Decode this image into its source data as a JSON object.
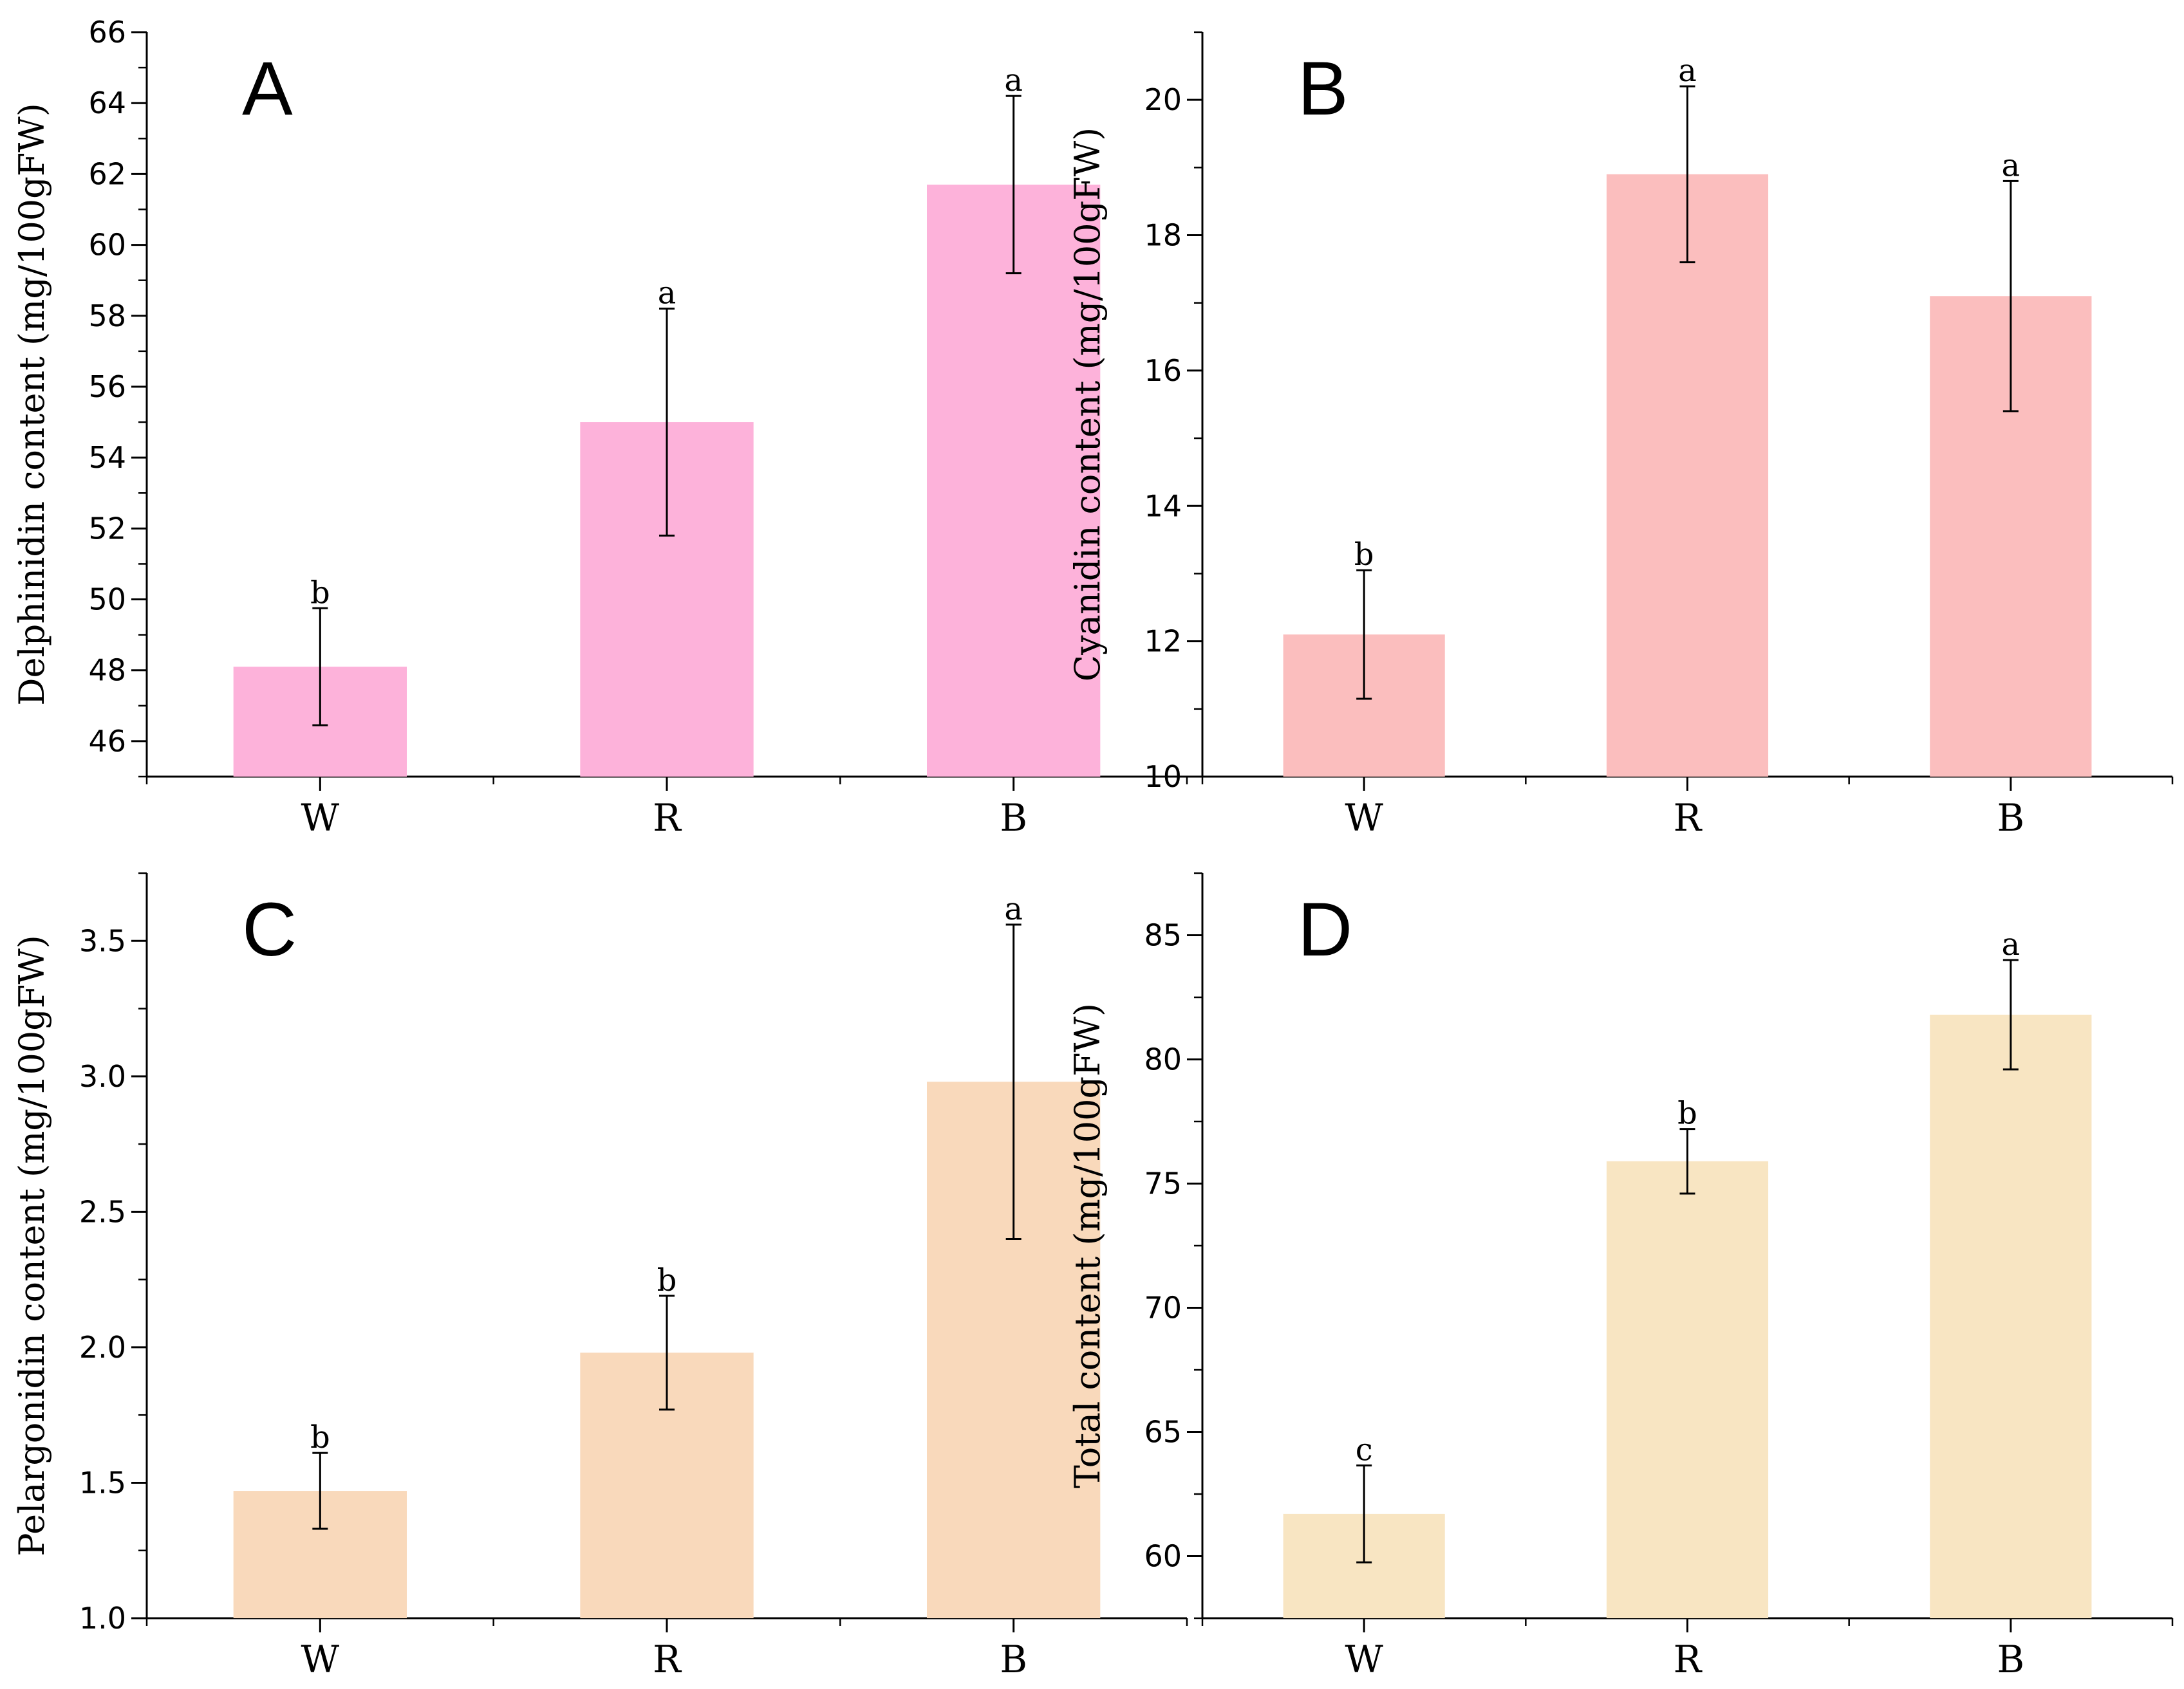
{
  "chart_data": [
    {
      "type": "bar",
      "panel": "A",
      "categories": [
        "W",
        "R",
        "B"
      ],
      "values": [
        48.1,
        55.0,
        61.7
      ],
      "errors": [
        1.65,
        3.2,
        2.5
      ],
      "significance": [
        "b",
        "a",
        "a"
      ],
      "ylabel": "Delphinidin content (mg/100gFW)",
      "ylim": [
        45,
        66
      ],
      "ticks": [
        46,
        48,
        50,
        52,
        54,
        56,
        58,
        60,
        62,
        64,
        66
      ],
      "tick_labels": [
        "46",
        "48",
        "50",
        "52",
        "54",
        "56",
        "58",
        "60",
        "62",
        "64",
        "66"
      ],
      "minor_step": 1,
      "bar_color": "#fdb2da"
    },
    {
      "type": "bar",
      "panel": "B",
      "categories": [
        "W",
        "R",
        "B"
      ],
      "values": [
        12.1,
        18.9,
        17.1
      ],
      "errors": [
        0.95,
        1.3,
        1.7
      ],
      "significance": [
        "b",
        "a",
        "a"
      ],
      "ylabel": "Cyanidin content (mg/100gFW)",
      "ylim": [
        10,
        21
      ],
      "ticks": [
        10,
        12,
        14,
        16,
        18,
        20
      ],
      "tick_labels": [
        "10",
        "12",
        "14",
        "16",
        "18",
        "20"
      ],
      "minor_step": 1,
      "bar_color": "#fbbebe"
    },
    {
      "type": "bar",
      "panel": "C",
      "categories": [
        "W",
        "R",
        "B"
      ],
      "values": [
        1.47,
        1.98,
        2.98
      ],
      "errors": [
        0.14,
        0.21,
        0.58
      ],
      "significance": [
        "b",
        "b",
        "a"
      ],
      "ylabel": "Pelargonidin content (mg/100gFW)",
      "ylim": [
        1.0,
        3.75
      ],
      "ticks": [
        1.0,
        1.5,
        2.0,
        2.5,
        3.0,
        3.5
      ],
      "tick_labels": [
        "1.0",
        "1.5",
        "2.0",
        "2.5",
        "3.0",
        "3.5"
      ],
      "minor_step": 0.25,
      "bar_color": "#f9d9bb"
    },
    {
      "type": "bar",
      "panel": "D",
      "categories": [
        "W",
        "R",
        "B"
      ],
      "values": [
        61.7,
        75.9,
        81.8
      ],
      "errors": [
        1.95,
        1.3,
        2.2
      ],
      "significance": [
        "c",
        "b",
        "a"
      ],
      "ylabel": "Total content (mg/100gFW)",
      "ylim": [
        57.5,
        87.5
      ],
      "ticks": [
        60,
        65,
        70,
        75,
        80,
        85
      ],
      "tick_labels": [
        "60",
        "65",
        "70",
        "75",
        "80",
        "85"
      ],
      "minor_step": 2.5,
      "bar_color": "#f8e5c2"
    }
  ]
}
